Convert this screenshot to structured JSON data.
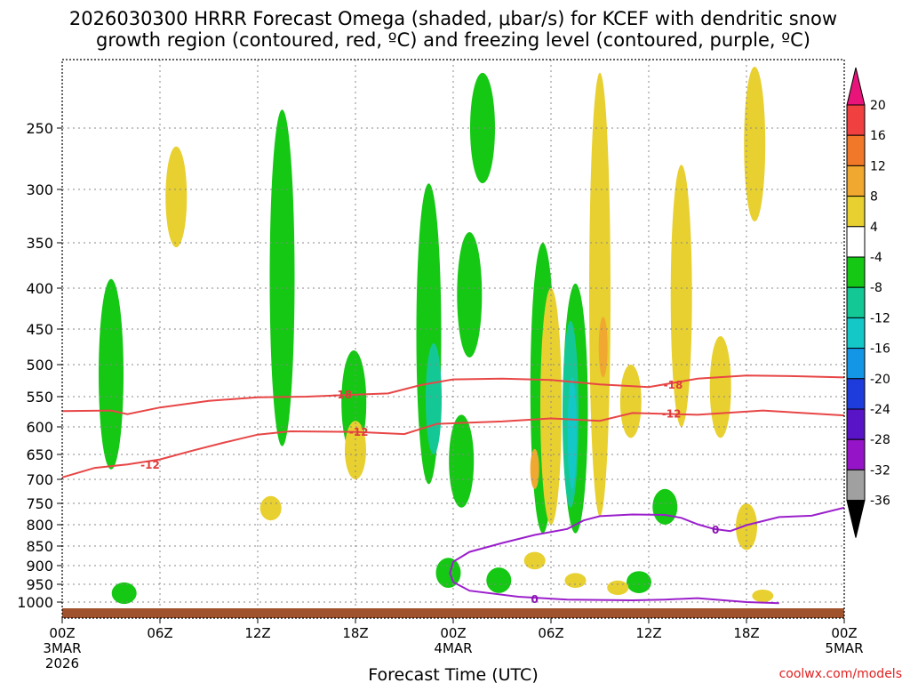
{
  "chart_data": {
    "type": "heatmap",
    "title_line1": "2026030300 HRRR Forecast Omega (shaded, μbar/s) for KCEF with dendritic snow",
    "title_line2": "growth region (contoured, red, ºC) and freezing level (contoured, purple, ºC)",
    "xlabel": "Forecast Time (UTC)",
    "ylabel": "",
    "credit": "coolwx.com/models",
    "x_range_hours": [
      0,
      48
    ],
    "y_range_hpa": [
      200,
      1030
    ],
    "x_ticks": [
      {
        "h": 0,
        "label": "00Z",
        "date1": "3MAR",
        "date2": "2026"
      },
      {
        "h": 6,
        "label": "06Z"
      },
      {
        "h": 12,
        "label": "12Z"
      },
      {
        "h": 18,
        "label": "18Z"
      },
      {
        "h": 24,
        "label": "00Z",
        "date1": "4MAR"
      },
      {
        "h": 30,
        "label": "06Z"
      },
      {
        "h": 36,
        "label": "12Z"
      },
      {
        "h": 42,
        "label": "18Z"
      },
      {
        "h": 48,
        "label": "00Z",
        "date1": "5MAR"
      }
    ],
    "y_ticks": [
      250,
      300,
      350,
      400,
      450,
      500,
      550,
      600,
      650,
      700,
      750,
      800,
      850,
      900,
      950,
      1000
    ],
    "colorbar": {
      "labels": [
        "20",
        "16",
        "12",
        "8",
        "4",
        "-4",
        "-8",
        "-12",
        "-16",
        "-20",
        "-24",
        "-28",
        "-32",
        "-36"
      ],
      "colors": [
        "#e8147a",
        "#f04040",
        "#f07828",
        "#f0a830",
        "#e8d030",
        "#ffffff",
        "#14c814",
        "#14c896",
        "#14c8c8",
        "#1496e6",
        "#1e3cdc",
        "#5a14c8",
        "#9614c8",
        "#a0a0a0",
        "#000000"
      ]
    },
    "contour_labels": {
      "dgz_top": "-18",
      "dgz_bottom": "-12",
      "freezing": "0"
    },
    "series": [
      {
        "name": "-18C isotherm",
        "color": "#e84646",
        "points": [
          [
            0,
            574
          ],
          [
            3,
            573
          ],
          [
            4,
            579
          ],
          [
            6,
            568
          ],
          [
            9,
            557
          ],
          [
            12,
            551
          ],
          [
            15,
            550
          ],
          [
            18,
            547
          ],
          [
            20,
            545
          ],
          [
            22,
            532
          ],
          [
            24,
            523
          ],
          [
            27,
            522
          ],
          [
            30,
            524
          ],
          [
            33,
            531
          ],
          [
            36,
            535
          ],
          [
            39,
            522
          ],
          [
            42,
            517
          ],
          [
            45,
            518
          ],
          [
            48,
            520
          ]
        ]
      },
      {
        "name": "-12C isotherm",
        "color": "#e84646",
        "points": [
          [
            0,
            696
          ],
          [
            2,
            677
          ],
          [
            4,
            670
          ],
          [
            6,
            660
          ],
          [
            8,
            643
          ],
          [
            10,
            628
          ],
          [
            12,
            614
          ],
          [
            14,
            608
          ],
          [
            18,
            609
          ],
          [
            21,
            613
          ],
          [
            23,
            595
          ],
          [
            27,
            591
          ],
          [
            30,
            586
          ],
          [
            33,
            590
          ],
          [
            35,
            577
          ],
          [
            39,
            580
          ],
          [
            43,
            573
          ],
          [
            48,
            581
          ]
        ]
      },
      {
        "name": "0C isotherm (freezing level)",
        "color": "#9b1fcb",
        "points": [
          [
            24,
            944
          ],
          [
            23.8,
            920
          ],
          [
            24,
            890
          ],
          [
            25,
            865
          ],
          [
            27,
            843
          ],
          [
            29,
            824
          ],
          [
            31,
            810
          ],
          [
            32,
            790
          ],
          [
            33,
            780
          ],
          [
            35,
            776
          ],
          [
            37,
            777
          ],
          [
            38,
            784
          ],
          [
            39,
            799
          ],
          [
            40,
            810
          ],
          [
            41,
            815
          ],
          [
            42,
            801
          ],
          [
            44,
            782
          ],
          [
            46,
            779
          ],
          [
            48,
            760
          ]
        ],
        "lower_branch": [
          [
            24,
            944
          ],
          [
            25,
            968
          ],
          [
            28,
            985
          ],
          [
            31,
            993
          ],
          [
            35,
            995
          ],
          [
            37,
            993
          ],
          [
            39,
            989
          ],
          [
            42,
            1000
          ],
          [
            44,
            1003
          ]
        ]
      }
    ],
    "shaded_regions": [
      {
        "cat": "-8",
        "color": "#14c814",
        "cx": 3.0,
        "p_top": 390,
        "p_bottom": 680
      },
      {
        "cat": "-8",
        "color": "#14c814",
        "cx": 3.8,
        "p_top": 945,
        "p_bottom": 1005
      },
      {
        "cat": "-8",
        "color": "#14c814",
        "cx": 13.5,
        "p_top": 235,
        "p_bottom": 635
      },
      {
        "cat": "-8",
        "color": "#14c814",
        "cx": 17.9,
        "p_top": 480,
        "p_bottom": 650
      },
      {
        "cat": "-8",
        "color": "#14c814",
        "cx": 22.5,
        "p_top": 295,
        "p_bottom": 710
      },
      {
        "cat": "-8",
        "color": "#14c814",
        "cx": 24.5,
        "p_top": 580,
        "p_bottom": 760
      },
      {
        "cat": "-8",
        "color": "#14c814",
        "cx": 25.0,
        "p_top": 340,
        "p_bottom": 490
      },
      {
        "cat": "-8",
        "color": "#14c814",
        "cx": 25.8,
        "p_top": 205,
        "p_bottom": 295
      },
      {
        "cat": "-8",
        "color": "#14c814",
        "cx": 29.5,
        "p_top": 350,
        "p_bottom": 820
      },
      {
        "cat": "-8",
        "color": "#14c814",
        "cx": 31.5,
        "p_top": 395,
        "p_bottom": 820
      },
      {
        "cat": "-8",
        "color": "#14c814",
        "cx": 37.0,
        "p_top": 720,
        "p_bottom": 800
      },
      {
        "cat": "-8",
        "color": "#14c814",
        "cx": 23.7,
        "p_top": 880,
        "p_bottom": 960
      },
      {
        "cat": "-8",
        "color": "#14c814",
        "cx": 26.8,
        "p_top": 905,
        "p_bottom": 975
      },
      {
        "cat": "-8",
        "color": "#14c814",
        "cx": 35.4,
        "p_top": 915,
        "p_bottom": 975
      },
      {
        "cat": "-12",
        "color": "#14c896",
        "cx": 22.8,
        "p_top": 470,
        "p_bottom": 650
      },
      {
        "cat": "-12",
        "color": "#14c896",
        "cx": 31.2,
        "p_top": 440,
        "p_bottom": 760
      },
      {
        "cat": "-16",
        "color": "#14c8c8",
        "cx": 31.3,
        "p_top": 520,
        "p_bottom": 720
      },
      {
        "cat": "4",
        "color": "#e8d030",
        "cx": 7.0,
        "p_top": 265,
        "p_bottom": 355
      },
      {
        "cat": "4",
        "color": "#e8d030",
        "cx": 18.0,
        "p_top": 590,
        "p_bottom": 700
      },
      {
        "cat": "4",
        "color": "#e8d030",
        "cx": 33.0,
        "p_top": 205,
        "p_bottom": 780
      },
      {
        "cat": "4",
        "color": "#e8d030",
        "cx": 38.0,
        "p_top": 280,
        "p_bottom": 600
      },
      {
        "cat": "4",
        "color": "#e8d030",
        "cx": 42.5,
        "p_top": 200,
        "p_bottom": 330
      },
      {
        "cat": "4",
        "color": "#e8d030",
        "cx": 42.0,
        "p_top": 750,
        "p_bottom": 860
      },
      {
        "cat": "4",
        "color": "#e8d030",
        "cx": 30.0,
        "p_top": 400,
        "p_bottom": 800
      },
      {
        "cat": "4",
        "color": "#e8d030",
        "cx": 34.9,
        "p_top": 500,
        "p_bottom": 620
      },
      {
        "cat": "4",
        "color": "#e8d030",
        "cx": 40.4,
        "p_top": 460,
        "p_bottom": 620
      },
      {
        "cat": "4",
        "color": "#e8d030",
        "cx": 29.0,
        "p_top": 865,
        "p_bottom": 910
      },
      {
        "cat": "4",
        "color": "#e8d030",
        "cx": 31.5,
        "p_top": 920,
        "p_bottom": 960
      },
      {
        "cat": "4",
        "color": "#e8d030",
        "cx": 34.1,
        "p_top": 940,
        "p_bottom": 980
      },
      {
        "cat": "4",
        "color": "#e8d030",
        "cx": 43.0,
        "p_top": 965,
        "p_bottom": 1000
      },
      {
        "cat": "4",
        "color": "#e8d030",
        "cx": 12.8,
        "p_top": 735,
        "p_bottom": 790
      },
      {
        "cat": "8",
        "color": "#f0a830",
        "cx": 33.2,
        "p_top": 435,
        "p_bottom": 520
      },
      {
        "cat": "8",
        "color": "#f0a830",
        "cx": 29.0,
        "p_top": 640,
        "p_bottom": 720
      }
    ],
    "ground_color": "#a0522d"
  }
}
